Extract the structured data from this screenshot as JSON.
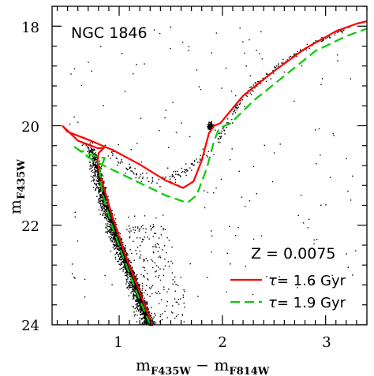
{
  "chart_data": {
    "type": "scatter",
    "title": "NGC 1846",
    "xlabel": {
      "main": "m",
      "sub1": "F435W",
      "minus": " − ",
      "main2": "m",
      "sub2": "F814W"
    },
    "ylabel": {
      "main": "m",
      "sub": "F435W"
    },
    "xlim": [
      0.35,
      3.4
    ],
    "ylim": [
      24.0,
      17.6
    ],
    "y_inverted": true,
    "x_ticks": [
      1,
      2,
      3
    ],
    "x_tick_labels": [
      "1",
      "2",
      "3"
    ],
    "y_ticks": [
      18,
      20,
      22,
      24
    ],
    "y_tick_labels": [
      "18",
      "20",
      "22",
      "24"
    ],
    "grid": false,
    "annotation_metallicity": "Z = 0.0075",
    "legend_position": "bottom-right",
    "colors": {
      "series_1": "#ff0000",
      "series_2": "#00cc00",
      "points": "#000000"
    },
    "series": [
      {
        "name": "τ= 1.6 Gyr",
        "label_prefix": "τ",
        "label_value": "= 1.6 Gyr",
        "style": "solid",
        "color": "#ff0000",
        "x": [
          1.32,
          1.2,
          1.05,
          0.93,
          0.86,
          0.81,
          0.79,
          0.8,
          0.85,
          0.79,
          0.6,
          0.45,
          0.5,
          0.7,
          0.95,
          1.2,
          1.45,
          1.62,
          1.72,
          1.8,
          1.87,
          1.92,
          1.98,
          2.2,
          2.5,
          2.8,
          3.1,
          3.3,
          3.4
        ],
        "y": [
          24.0,
          23.35,
          22.55,
          21.8,
          21.3,
          20.95,
          20.7,
          20.55,
          20.45,
          20.45,
          20.3,
          20.0,
          20.12,
          20.28,
          20.5,
          20.78,
          21.1,
          21.25,
          21.12,
          20.7,
          20.15,
          20.0,
          19.95,
          19.4,
          18.9,
          18.45,
          18.1,
          17.95,
          17.9
        ]
      },
      {
        "name": "τ= 1.9 Gyr",
        "label_prefix": "τ",
        "label_value": "= 1.9 Gyr",
        "style": "dashed",
        "color": "#00cc00",
        "x": [
          1.3,
          1.18,
          1.03,
          0.92,
          0.85,
          0.82,
          0.81,
          0.84,
          0.86,
          0.78,
          0.62,
          0.55,
          0.75,
          1.0,
          1.25,
          1.45,
          1.66,
          1.75,
          1.85,
          1.92,
          1.97,
          2.08,
          2.3,
          2.6,
          2.9,
          3.2,
          3.4
        ],
        "y": [
          24.0,
          23.4,
          22.6,
          21.95,
          21.45,
          21.15,
          20.9,
          20.75,
          20.65,
          20.62,
          20.5,
          20.4,
          20.7,
          20.95,
          21.2,
          21.4,
          21.55,
          21.4,
          20.85,
          20.3,
          20.05,
          19.95,
          19.5,
          19.0,
          18.5,
          18.2,
          18.05
        ]
      }
    ],
    "scatter_description": "dense black point cloud of stars along main sequence, turnoff, red giant branch and red clump"
  }
}
